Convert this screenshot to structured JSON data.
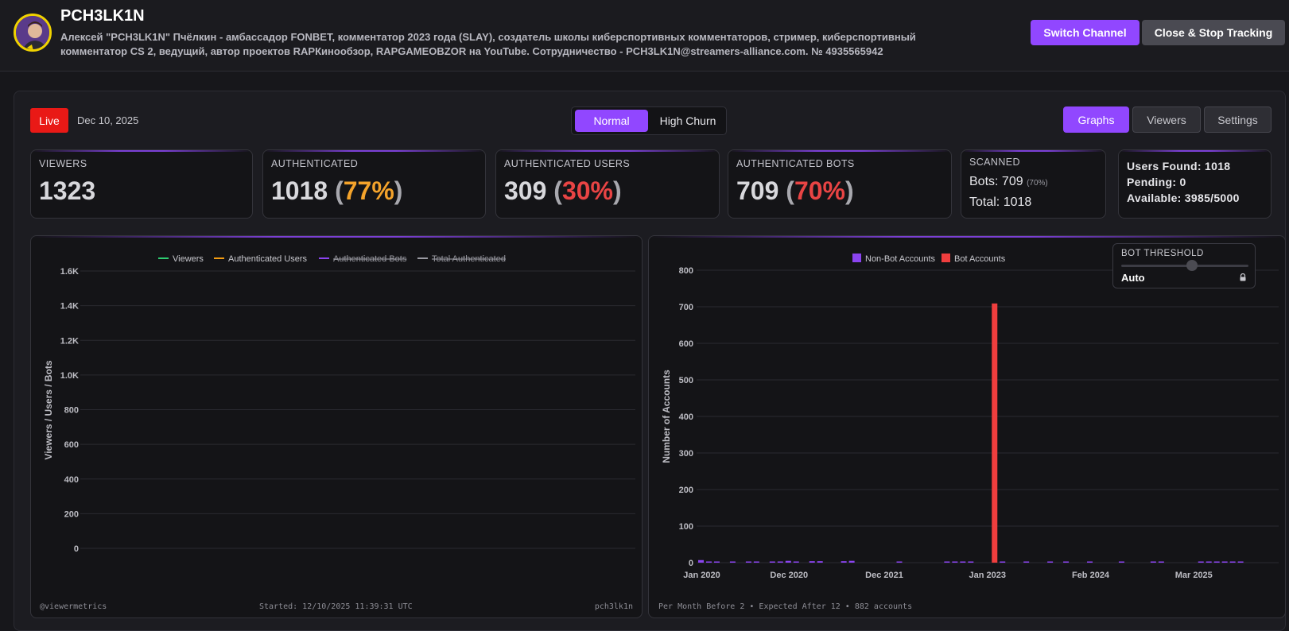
{
  "header": {
    "channel_name": "PCH3LK1N",
    "description": "Алексей \"PCH3LK1N\" Пчёлкин - амбассадор FONBET, комментатор 2023 года (SLAY), создатель школы киберспортивных комментаторов, стример, киберспортивный комментатор CS 2, ведущий, автор проектов RAPКинообзор, RAPGAMEOBZOR на YouTube. Сотрудничество - PCH3LK1N@streamers-alliance.com. № 4935565942",
    "switch_label": "Switch Channel",
    "close_label": "Close & Stop Tracking"
  },
  "toolbar": {
    "live_label": "Live",
    "date": "Dec 10, 2025",
    "mode_normal": "Normal",
    "mode_high_churn": "High Churn",
    "view_graphs": "Graphs",
    "view_viewers": "Viewers",
    "view_settings": "Settings"
  },
  "cards": {
    "viewers": {
      "label": "VIEWERS",
      "value": "1323"
    },
    "authenticated": {
      "label": "AUTHENTICATED",
      "value": "1018",
      "pct": "77%"
    },
    "auth_users": {
      "label": "AUTHENTICATED USERS",
      "value": "309",
      "pct": "30%"
    },
    "auth_bots": {
      "label": "AUTHENTICATED BOTS",
      "value": "709",
      "pct": "70%"
    },
    "scanned": {
      "label": "SCANNED",
      "bots_prefix": "Bots:",
      "bots_value": "709",
      "bots_pct": "(70%)",
      "total_prefix": "Total:",
      "total_value": "1018"
    },
    "stats": {
      "users_found": "Users Found: 1018",
      "pending": "Pending: 0",
      "available": "Available: 3985/5000"
    }
  },
  "left_chart": {
    "footer_left": "@viewermetrics",
    "footer_center": "Started: 12/10/2025 11:39:31 UTC",
    "footer_right": "pch3lk1n"
  },
  "right_chart": {
    "footer": "Per Month Before 2 • Expected After 12 • 882 accounts"
  },
  "threshold": {
    "title": "BOT THRESHOLD",
    "value": "Auto"
  },
  "colors": {
    "accent": "#9147ff",
    "live": "#e91916",
    "green": "#2ecc71",
    "orange": "#f39c12",
    "purple": "#8b44f0",
    "gray": "#9a9aa2",
    "bot_red": "#f03e3e"
  },
  "chart_data": [
    {
      "type": "line",
      "ylabel": "Viewers / Users / Bots",
      "ylim": [
        0,
        1600
      ],
      "yticks": [
        "0",
        "200",
        "400",
        "600",
        "800",
        "1.0K",
        "1.2K",
        "1.4K",
        "1.6K"
      ],
      "legend_position": "top-center",
      "series": [
        {
          "name": "Viewers",
          "color": "#2ecc71",
          "hidden": false,
          "values": []
        },
        {
          "name": "Authenticated Users",
          "color": "#f39c12",
          "hidden": false,
          "values": []
        },
        {
          "name": "Authenticated Bots",
          "color": "#8b44f0",
          "hidden": true,
          "values": []
        },
        {
          "name": "Total Authenticated",
          "color": "#9a9aa2",
          "hidden": true,
          "values": []
        }
      ],
      "grid": true
    },
    {
      "type": "bar",
      "ylabel": "Number of Accounts",
      "ylim": [
        0,
        800
      ],
      "yticks": [
        "0",
        "100",
        "200",
        "300",
        "400",
        "500",
        "600",
        "700",
        "800"
      ],
      "xtick_labels": [
        "Jan 2020",
        "Dec 2020",
        "Dec 2021",
        "Jan 2023",
        "Feb 2024",
        "Mar 2025"
      ],
      "legend_position": "top-center",
      "series": [
        {
          "name": "Non-Bot Accounts",
          "color": "#8b44f0",
          "values": [
            {
              "x": "2020-01",
              "y": 7
            },
            {
              "x": "2020-02",
              "y": 2
            },
            {
              "x": "2020-03",
              "y": 3
            },
            {
              "x": "2020-05",
              "y": 2
            },
            {
              "x": "2020-07",
              "y": 2
            },
            {
              "x": "2020-08",
              "y": 1
            },
            {
              "x": "2020-10",
              "y": 3
            },
            {
              "x": "2020-11",
              "y": 2
            },
            {
              "x": "2020-12",
              "y": 5
            },
            {
              "x": "2021-01",
              "y": 3
            },
            {
              "x": "2021-03",
              "y": 4
            },
            {
              "x": "2021-04",
              "y": 4
            },
            {
              "x": "2021-07",
              "y": 4
            },
            {
              "x": "2021-08",
              "y": 5
            },
            {
              "x": "2022-02",
              "y": 2
            },
            {
              "x": "2022-08",
              "y": 2
            },
            {
              "x": "2022-09",
              "y": 2
            },
            {
              "x": "2022-10",
              "y": 2
            },
            {
              "x": "2022-11",
              "y": 1
            },
            {
              "x": "2023-03",
              "y": 1
            },
            {
              "x": "2023-06",
              "y": 2
            },
            {
              "x": "2023-09",
              "y": 2
            },
            {
              "x": "2023-11",
              "y": 1
            },
            {
              "x": "2024-02",
              "y": 2
            },
            {
              "x": "2024-06",
              "y": 1
            },
            {
              "x": "2024-10",
              "y": 2
            },
            {
              "x": "2024-11",
              "y": 2
            },
            {
              "x": "2025-04",
              "y": 3
            },
            {
              "x": "2025-05",
              "y": 3
            },
            {
              "x": "2025-06",
              "y": 3
            },
            {
              "x": "2025-07",
              "y": 3
            },
            {
              "x": "2025-08",
              "y": 3
            },
            {
              "x": "2025-09",
              "y": 1
            }
          ]
        },
        {
          "name": "Bot Accounts",
          "color": "#f03e3e",
          "values": [
            {
              "x": "2023-02",
              "y": 709
            }
          ]
        }
      ],
      "grid": true
    }
  ]
}
